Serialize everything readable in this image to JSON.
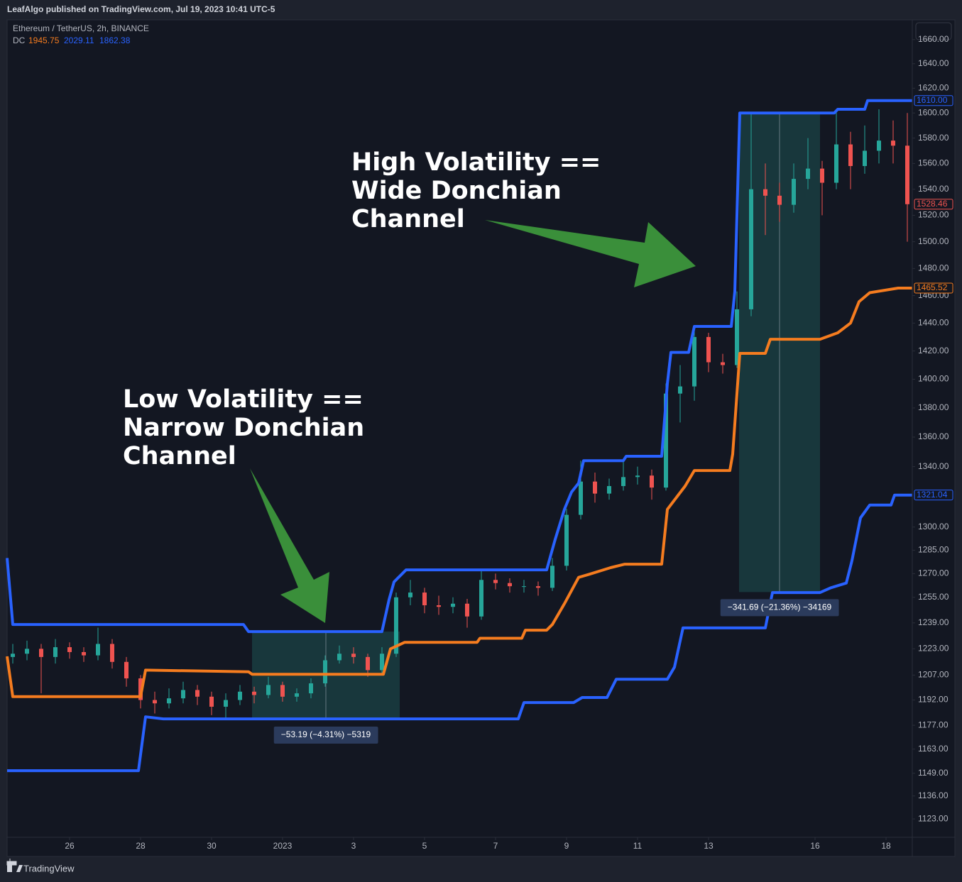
{
  "header": {
    "published": "LeafAlgo published on TradingView.com, Jul 19, 2023 10:41 UTC-5"
  },
  "footer": {
    "brand": "TradingView"
  },
  "chart_data": {
    "type": "candlestick",
    "symbol": "Ethereum / TetherUS, 2h, BINANCE",
    "indicator": {
      "name": "DC",
      "values": [
        1945.75,
        2029.11,
        1862.38
      ],
      "colors": [
        "#f57c1f",
        "#2962ff",
        "#2962ff"
      ]
    },
    "log_scale": true,
    "grid": false,
    "ylim": [
      1112.7,
      1675.3
    ],
    "yticks": [
      {
        "value": 1123,
        "label": "1123.00"
      },
      {
        "value": 1136,
        "label": "1136.00"
      },
      {
        "value": 1149,
        "label": "1149.00"
      },
      {
        "value": 1163,
        "label": "1163.00"
      },
      {
        "value": 1177,
        "label": "1177.00"
      },
      {
        "value": 1192,
        "label": "1192.00"
      },
      {
        "value": 1207,
        "label": "1207.00"
      },
      {
        "value": 1223,
        "label": "1223.00"
      },
      {
        "value": 1239,
        "label": "1239.00"
      },
      {
        "value": 1255,
        "label": "1255.00"
      },
      {
        "value": 1270,
        "label": "1270.00"
      },
      {
        "value": 1285,
        "label": "1285.00"
      },
      {
        "value": 1300,
        "label": "1300.00"
      },
      {
        "value": 1340,
        "label": "1340.00"
      },
      {
        "value": 1360,
        "label": "1360.00"
      },
      {
        "value": 1380,
        "label": "1380.00"
      },
      {
        "value": 1400,
        "label": "1400.00"
      },
      {
        "value": 1420,
        "label": "1420.00"
      },
      {
        "value": 1440,
        "label": "1440.00"
      },
      {
        "value": 1460,
        "label": "1460.00"
      },
      {
        "value": 1480,
        "label": "1480.00"
      },
      {
        "value": 1500,
        "label": "1500.00"
      },
      {
        "value": 1520,
        "label": "1520.00"
      },
      {
        "value": 1540,
        "label": "1540.00"
      },
      {
        "value": 1560,
        "label": "1560.00"
      },
      {
        "value": 1580,
        "label": "1580.00"
      },
      {
        "value": 1600,
        "label": "1600.00"
      },
      {
        "value": 1620,
        "label": "1620.00"
      },
      {
        "value": 1640,
        "label": "1640.00"
      },
      {
        "value": 1660,
        "label": "1660.00"
      }
    ],
    "xlim": [
      -1.76,
      23.74
    ],
    "xticks": [
      {
        "value": 0,
        "label": "26"
      },
      {
        "value": 2,
        "label": "28"
      },
      {
        "value": 4,
        "label": "30"
      },
      {
        "value": 6,
        "label": "2023"
      },
      {
        "value": 8,
        "label": "3"
      },
      {
        "value": 10,
        "label": "5"
      },
      {
        "value": 12,
        "label": "7"
      },
      {
        "value": 14,
        "label": "9"
      },
      {
        "value": 16,
        "label": "11"
      },
      {
        "value": 18,
        "label": "13"
      },
      {
        "value": 21,
        "label": "16"
      },
      {
        "value": 23,
        "label": "18"
      }
    ],
    "up_color": "#26a69a",
    "down_color": "#ef5350",
    "candles": {
      "x": [
        -1.6,
        -1.2,
        -0.8,
        -0.4,
        0,
        0.4,
        0.8,
        1.2,
        1.6,
        2,
        2.4,
        2.8,
        3.2,
        3.6,
        4,
        4.4,
        4.8,
        5.2,
        5.6,
        6,
        6.4,
        6.8,
        7.2,
        7.6,
        8,
        8.4,
        8.8,
        9.2,
        9.6,
        10,
        10.4,
        10.8,
        11.2,
        11.6,
        12,
        12.4,
        12.8,
        13.2,
        13.6,
        14,
        14.4,
        14.8,
        15.2,
        15.6,
        16,
        16.4,
        16.8,
        17.2,
        17.6,
        18,
        18.4,
        18.8,
        19.2,
        19.6,
        20,
        20.4,
        20.8,
        21.2,
        21.6,
        22,
        22.4,
        22.8,
        23.2,
        23.6
      ],
      "open": [
        1218,
        1220,
        1223,
        1218,
        1224,
        1221,
        1219,
        1226,
        1215,
        1205,
        1192,
        1190,
        1193,
        1198,
        1194,
        1188,
        1192,
        1197,
        1195,
        1201,
        1194,
        1196,
        1202,
        1216,
        1220,
        1218,
        1210,
        1220,
        1255,
        1258,
        1250,
        1249,
        1251,
        1243,
        1266,
        1264,
        1262,
        1262,
        1261,
        1275,
        1308,
        1330,
        1322,
        1327,
        1333,
        1334,
        1326,
        1390,
        1395,
        1430,
        1412,
        1410,
        1450,
        1540,
        1535,
        1528,
        1548,
        1556,
        1545,
        1575,
        1558,
        1570,
        1578,
        1574
      ],
      "high": [
        1226,
        1228,
        1226,
        1229,
        1227,
        1224,
        1236,
        1229,
        1218,
        1207,
        1197,
        1199,
        1203,
        1201,
        1197,
        1196,
        1201,
        1200,
        1206,
        1203,
        1199,
        1205,
        1219,
        1225,
        1224,
        1220,
        1224,
        1258,
        1266,
        1261,
        1256,
        1255,
        1254,
        1272,
        1270,
        1267,
        1266,
        1265,
        1280,
        1312,
        1344,
        1336,
        1332,
        1344,
        1340,
        1338,
        1397,
        1410,
        1437,
        1433,
        1418,
        1463,
        1600,
        1560,
        1545,
        1560,
        1580,
        1562,
        1603,
        1585,
        1590,
        1603,
        1594,
        1600
      ],
      "low": [
        1214,
        1216,
        1196,
        1214,
        1217,
        1215,
        1216,
        1211,
        1200,
        1187,
        1184,
        1187,
        1190,
        1189,
        1183,
        1181,
        1189,
        1190,
        1193,
        1191,
        1191,
        1193,
        1200,
        1214,
        1214,
        1206,
        1207,
        1218,
        1250,
        1245,
        1244,
        1245,
        1236,
        1241,
        1260,
        1258,
        1258,
        1256,
        1259,
        1272,
        1305,
        1316,
        1318,
        1324,
        1328,
        1318,
        1324,
        1370,
        1385,
        1405,
        1404,
        1408,
        1445,
        1505,
        1515,
        1522,
        1540,
        1520,
        1540,
        1540,
        1552,
        1560,
        1560,
        1500
      ],
      "close": [
        1220,
        1223,
        1218,
        1224,
        1221,
        1219,
        1226,
        1215,
        1205,
        1192,
        1190,
        1193,
        1198,
        1194,
        1188,
        1192,
        1197,
        1195,
        1201,
        1194,
        1196,
        1202,
        1216,
        1220,
        1218,
        1210,
        1220,
        1255,
        1258,
        1250,
        1249,
        1251,
        1243,
        1266,
        1264,
        1262,
        1262,
        1261,
        1275,
        1308,
        1330,
        1322,
        1327,
        1333,
        1334,
        1326,
        1390,
        1395,
        1430,
        1412,
        1410,
        1450,
        1540,
        1535,
        1528,
        1548,
        1556,
        1545,
        1575,
        1558,
        1570,
        1578,
        1574,
        1528.46
      ]
    },
    "lines": [
      {
        "color": "#2962ff",
        "x": [
          -1.76,
          -1.6,
          4.9,
          5.04,
          8.8,
          9,
          9.14,
          9.48,
          13.44,
          13.54,
          13.68,
          13.94,
          14.14,
          14.34,
          14.48,
          15.6,
          15.68,
          16.68,
          16.84,
          16.94,
          17.44,
          17.6,
          18.64,
          18.74,
          18.88,
          21.54,
          21.64,
          22.4,
          22.48,
          23.74
        ],
        "values": [
          1280,
          1238,
          1238,
          1233.6,
          1233.6,
          1253.5,
          1264.7,
          1272.4,
          1272.4,
          1280.6,
          1292,
          1311.6,
          1323,
          1329,
          1344,
          1344,
          1347,
          1347,
          1397,
          1419,
          1419,
          1437.6,
          1437.6,
          1463,
          1600,
          1600,
          1603,
          1603,
          1610,
          1610
        ]
      },
      {
        "color": "#f57c1f",
        "x": [
          -1.76,
          -1.6,
          2,
          2.14,
          5.04,
          5.14,
          8.84,
          9.04,
          9.44,
          11.48,
          11.56,
          12.74,
          12.84,
          13.44,
          13.6,
          13.94,
          14.34,
          14.64,
          15.24,
          15.64,
          16.68,
          16.84,
          17.34,
          17.6,
          18.6,
          18.68,
          18.88,
          19.6,
          19.74,
          21.14,
          21.64,
          22,
          22.24,
          22.54,
          23.34,
          23.74
        ],
        "values": [
          1218.4,
          1194,
          1194,
          1210,
          1209,
          1207.5,
          1207.5,
          1223,
          1227,
          1227,
          1229.5,
          1229.5,
          1234.5,
          1234.5,
          1238,
          1251,
          1267.6,
          1269.6,
          1273.8,
          1276,
          1276,
          1311.6,
          1327,
          1337.4,
          1337.4,
          1348.4,
          1418.3,
          1418.3,
          1428.4,
          1428.4,
          1433,
          1440,
          1455.6,
          1462.1,
          1465.5,
          1465.52
        ]
      },
      {
        "color": "#2962ff",
        "x": [
          -1.76,
          1.94,
          2.14,
          2.64,
          12.64,
          12.8,
          14.2,
          14.44,
          15.14,
          15.4,
          16.84,
          17.04,
          17.28,
          19.6,
          19.8,
          21.14,
          21.44,
          21.88,
          22.04,
          22.28,
          22.54,
          23.14,
          23.24,
          23.74
        ],
        "values": [
          1150.5,
          1150.5,
          1182,
          1180.8,
          1180.8,
          1190.5,
          1190.5,
          1193.5,
          1193.5,
          1204.5,
          1204.5,
          1211.8,
          1235.9,
          1235.9,
          1258,
          1258,
          1261,
          1264,
          1278.3,
          1306,
          1314.4,
          1314.4,
          1321.04,
          1321.04
        ]
      }
    ],
    "price_labels": [
      {
        "value": 1610,
        "label": "1610.00",
        "color": "#2962ff"
      },
      {
        "value": 1528.46,
        "label": "1528.46",
        "color": "#ef5350"
      },
      {
        "value": 1465.52,
        "label": "1465.52",
        "color": "#f57c1f"
      },
      {
        "value": 1321.04,
        "label": "1321.04",
        "color": "#2962ff"
      }
    ],
    "measures": [
      {
        "x": [
          5.14,
          9.3
        ],
        "from": 1233.6,
        "to": 1180.41,
        "label": "−53.19 (−4.31%) −5319"
      },
      {
        "x": [
          18.86,
          21.14
        ],
        "from": 1600,
        "to": 1258.31,
        "label": "−341.69 (−21.36%) −34169"
      }
    ],
    "annotations": [
      {
        "lines": [
          "Low Volatility ==",
          "Narrow Donchian",
          "Channel"
        ]
      },
      {
        "lines": [
          "High Volatility ==",
          "Wide Donchian",
          "Channel"
        ]
      }
    ]
  }
}
